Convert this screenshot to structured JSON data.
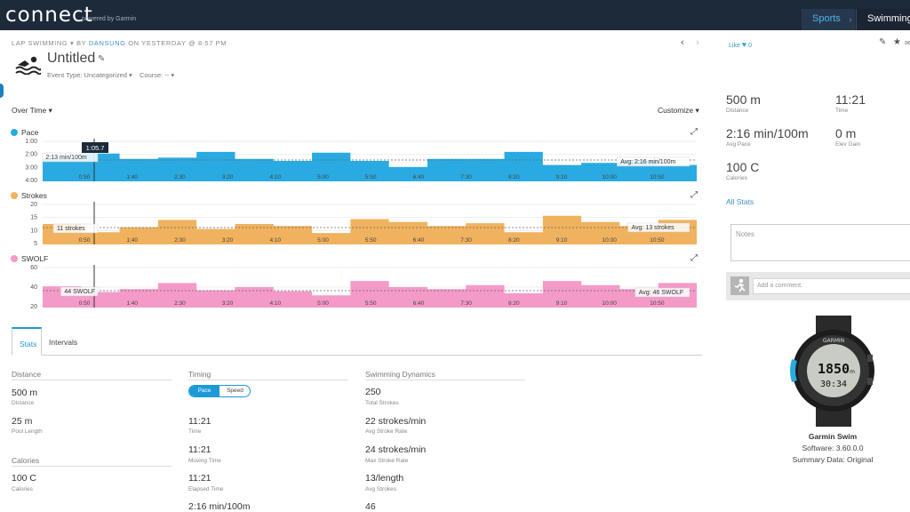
{
  "header": {
    "logo": "connect",
    "logo_sub": "powered by Garmin",
    "nav": {
      "sports": "Sports",
      "separator": "›",
      "swimming": "Swimming"
    }
  },
  "activity": {
    "type": "LAP SWIMMING",
    "by": "BY",
    "user": "DANSUNG",
    "when": "ON YESTERDAY @ 8:57 PM",
    "title": "Untitled",
    "event_type": "Event Type: Uncategorized",
    "course": "Course: --",
    "prev_icon": "chevron-left-icon",
    "next_icon": "chevron-right-icon"
  },
  "charts_header": {
    "over_time": "Over Time",
    "customize": "Customize"
  },
  "charts": [
    {
      "name": "Pace",
      "color": "#29abe2",
      "y_ticks": [
        "1:00",
        "2:00",
        "3:00",
        "4:00"
      ],
      "cursor_value": "1:05.7",
      "cursor_label": "2:13 min/100m",
      "avg_label": "Avg: 2:16 min/100m",
      "x_ticks": [
        "0:50",
        "1:40",
        "2:30",
        "3:20",
        "4:10",
        "5:00",
        "5:50",
        "6:40",
        "7:30",
        "8:20",
        "9:10",
        "10:00",
        "10:50"
      ]
    },
    {
      "name": "Strokes",
      "color": "#f0b25e",
      "y_ticks": [
        "20",
        "15",
        "10",
        "5"
      ],
      "cursor_label": "11 strokes",
      "avg_label": "Avg: 13 strokes",
      "x_ticks": [
        "0:50",
        "1:40",
        "2:30",
        "3:20",
        "4:10",
        "5:00",
        "5:50",
        "6:40",
        "7:30",
        "8:20",
        "9:10",
        "10:00",
        "10:50"
      ]
    },
    {
      "name": "SWOLF",
      "color": "#f49ac9",
      "y_ticks": [
        "60",
        "40",
        "20"
      ],
      "cursor_label": "44 SWOLF",
      "avg_label": "Avg: 46 SWOLF",
      "x_ticks": [
        "0:50",
        "1:40",
        "2:30",
        "3:20",
        "4:10",
        "5:00",
        "5:50",
        "6:40",
        "7:30",
        "8:20",
        "9:10",
        "10:00",
        "10:50"
      ]
    }
  ],
  "tabs": {
    "stats": "Stats",
    "intervals": "Intervals"
  },
  "stats": {
    "distance": {
      "heading": "Distance",
      "items": [
        {
          "value": "500 m",
          "label": "Distance"
        },
        {
          "value": "25 m",
          "label": "Pool Length"
        }
      ]
    },
    "calories": {
      "heading": "Calories",
      "items": [
        {
          "value": "100 C",
          "label": "Calories"
        }
      ]
    },
    "timing": {
      "heading": "Timing",
      "toggle_pace": "Pace",
      "toggle_speed": "Speed",
      "items": [
        {
          "value": "11:21",
          "label": "Time"
        },
        {
          "value": "11:21",
          "label": "Moving Time"
        },
        {
          "value": "11:21",
          "label": "Elapsed Time"
        },
        {
          "value": "2:16 min/100m",
          "label": ""
        }
      ]
    },
    "swimming": {
      "heading": "Swimming Dynamics",
      "items": [
        {
          "value": "250",
          "label": "Total Strokes"
        },
        {
          "value": "22 strokes/min",
          "label": "Avg Stroke Rate"
        },
        {
          "value": "24 strokes/min",
          "label": "Max Stroke Rate"
        },
        {
          "value": "13/length",
          "label": "Avg Strokes"
        },
        {
          "value": "46",
          "label": ""
        }
      ]
    }
  },
  "sidebar": {
    "like": "Like",
    "like_count": "0",
    "summary": [
      {
        "value": "500 m",
        "label": "Distance"
      },
      {
        "value": "11:21",
        "label": "Time"
      },
      {
        "value": "2:16 min/100m",
        "label": "Avg Pace"
      },
      {
        "value": "0 m",
        "label": "Elev Gain"
      },
      {
        "value": "100 C",
        "label": "Calories"
      }
    ],
    "all_stats": "All Stats",
    "notes_placeholder": "Notes",
    "comment_placeholder": "Add a comment.",
    "watch": {
      "brand": "GARMIN",
      "screen_top": "1850",
      "screen_unit": "m",
      "screen_time": "30:34"
    },
    "device_name": "Garmin Swim",
    "software": "Software: 3.60.0.0",
    "summary_data": "Summary Data: Original"
  }
}
